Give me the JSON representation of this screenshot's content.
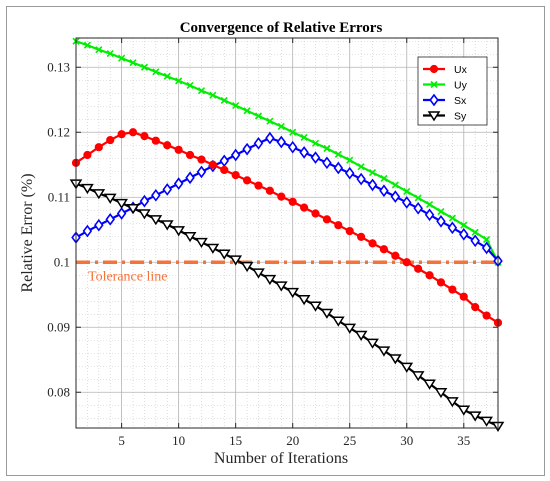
{
  "chart_data": {
    "type": "line",
    "title": "Convergence of Relative Errors",
    "xlabel": "Number of Iterations",
    "ylabel": "Relative Error (%)",
    "xlim": [
      1,
      38
    ],
    "ylim": [
      0.0745,
      0.1345
    ],
    "x_ticks": [
      5,
      10,
      15,
      20,
      25,
      30,
      35
    ],
    "y_ticks": [
      0.08,
      0.09,
      0.1,
      0.11,
      0.12,
      0.13
    ],
    "y_tick_labels": [
      "0.08",
      "0.09",
      "0.1",
      "0.11",
      "0.12",
      "0.13"
    ],
    "y_minor_step": 0.002,
    "x_minor_step": 1,
    "grid": true,
    "legend_position": "top-right",
    "series": [
      {
        "name": "Ux",
        "color": "#ff0000",
        "marker": "circle",
        "x": [
          1,
          2,
          3,
          4,
          5,
          6,
          7,
          8,
          9,
          10,
          11,
          12,
          13,
          14,
          15,
          16,
          17,
          18,
          19,
          20,
          21,
          22,
          23,
          24,
          25,
          26,
          27,
          28,
          29,
          30,
          31,
          32,
          33,
          34,
          35,
          36,
          37,
          38
        ],
        "y": [
          0.1153,
          0.1165,
          0.1177,
          0.1188,
          0.1197,
          0.12,
          0.1194,
          0.1187,
          0.118,
          0.1173,
          0.1165,
          0.1158,
          0.115,
          0.1142,
          0.1134,
          0.1126,
          0.1118,
          0.111,
          0.1101,
          0.1093,
          0.1084,
          0.1075,
          0.1066,
          0.1057,
          0.1048,
          0.1039,
          0.1029,
          0.102,
          0.101,
          0.1,
          0.099,
          0.098,
          0.0969,
          0.0958,
          0.0947,
          0.0931,
          0.0918,
          0.0907
        ]
      },
      {
        "name": "Uy",
        "color": "#00ee00",
        "marker": "x",
        "x": [
          1,
          2,
          3,
          4,
          5,
          6,
          7,
          8,
          9,
          10,
          11,
          12,
          13,
          14,
          15,
          16,
          17,
          18,
          19,
          20,
          21,
          22,
          23,
          24,
          25,
          26,
          27,
          28,
          29,
          30,
          31,
          32,
          33,
          34,
          35,
          36,
          37,
          38
        ],
        "y": [
          0.134,
          0.1334,
          0.1327,
          0.1321,
          0.1314,
          0.1307,
          0.13,
          0.1293,
          0.1286,
          0.1279,
          0.1272,
          0.1264,
          0.1257,
          0.1249,
          0.1241,
          0.1233,
          0.1225,
          0.1217,
          0.1209,
          0.12,
          0.1192,
          0.1183,
          0.1175,
          0.1166,
          0.1157,
          0.1147,
          0.1138,
          0.1129,
          0.1119,
          0.1109,
          0.1099,
          0.1089,
          0.1078,
          0.1068,
          0.1057,
          0.1046,
          0.1035,
          0.1
        ]
      },
      {
        "name": "Sx",
        "color": "#0000ff",
        "marker": "diamond",
        "x": [
          1,
          2,
          3,
          4,
          5,
          6,
          7,
          8,
          9,
          10,
          11,
          12,
          13,
          14,
          15,
          16,
          17,
          18,
          19,
          20,
          21,
          22,
          23,
          24,
          25,
          26,
          27,
          28,
          29,
          30,
          31,
          32,
          33,
          34,
          35,
          36,
          37,
          38
        ],
        "y": [
          0.1038,
          0.1048,
          0.1057,
          0.1066,
          0.1075,
          0.1084,
          0.1094,
          0.1103,
          0.1112,
          0.1121,
          0.113,
          0.1139,
          0.1148,
          0.1156,
          0.1165,
          0.1174,
          0.1183,
          0.1191,
          0.1185,
          0.1177,
          0.1169,
          0.1161,
          0.1153,
          0.1145,
          0.1137,
          0.1128,
          0.1119,
          0.111,
          0.1101,
          0.1092,
          0.1083,
          0.1073,
          0.1063,
          0.1053,
          0.1043,
          0.1033,
          0.1022,
          0.1002
        ]
      },
      {
        "name": "Sy",
        "color": "#000000",
        "marker": "triangle-down",
        "x": [
          1,
          2,
          3,
          4,
          5,
          6,
          7,
          8,
          9,
          10,
          11,
          12,
          13,
          14,
          15,
          16,
          17,
          18,
          19,
          20,
          21,
          22,
          23,
          24,
          25,
          26,
          27,
          28,
          29,
          30,
          31,
          32,
          33,
          34,
          35,
          36,
          37,
          38
        ],
        "y": [
          0.1121,
          0.1114,
          0.1106,
          0.1099,
          0.1091,
          0.1083,
          0.1075,
          0.1066,
          0.1058,
          0.1049,
          0.104,
          0.1031,
          0.1022,
          0.1013,
          0.1004,
          0.0994,
          0.0984,
          0.0974,
          0.0964,
          0.0954,
          0.0943,
          0.0933,
          0.0922,
          0.091,
          0.0899,
          0.0888,
          0.0876,
          0.0864,
          0.0852,
          0.0839,
          0.0826,
          0.0813,
          0.08,
          0.0786,
          0.0773,
          0.0764,
          0.0756,
          0.0748
        ]
      }
    ],
    "reference_line": {
      "y": 0.1,
      "label": "Tolerance line",
      "color": "#f4733a",
      "style": "dash-dot"
    }
  }
}
